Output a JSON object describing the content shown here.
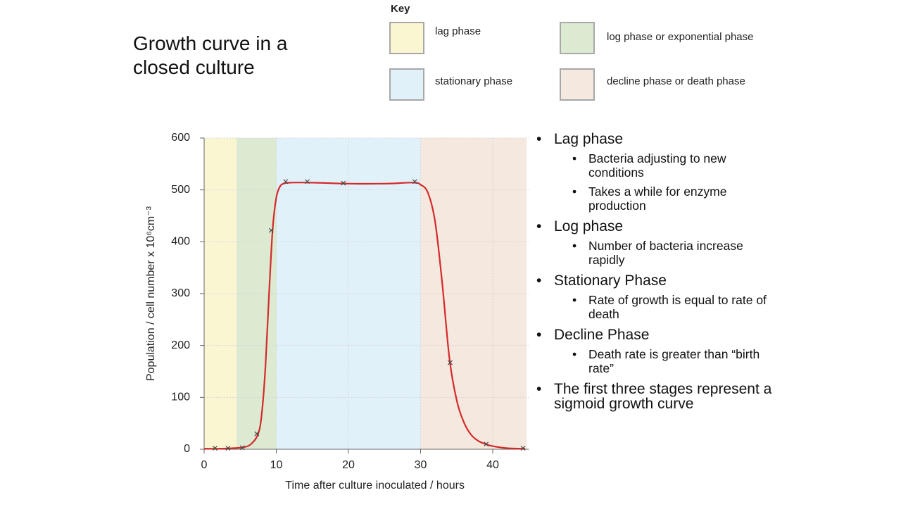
{
  "slide_title": "Growth curve in a closed culture",
  "key_title": "Key",
  "chart_data": {
    "type": "scatter",
    "xlabel": "Time after culture inoculated / hours",
    "ylabel": "Population / cell number x 10⁶cm⁻³",
    "xlim": [
      0,
      45
    ],
    "ylim": [
      0,
      600
    ],
    "xticks": [
      0,
      10,
      20,
      30,
      40
    ],
    "yticks": [
      0,
      100,
      200,
      300,
      400,
      500,
      600
    ],
    "grid": true,
    "phases": [
      {
        "name": "lag phase",
        "color": "#fbf6d2",
        "start": 0,
        "end": 4.5
      },
      {
        "name": "log phase or exponential phase",
        "color": "#dcead2",
        "start": 4.5,
        "end": 10
      },
      {
        "name": "stationary phase",
        "color": "#e1f1fa",
        "start": 10,
        "end": 30
      },
      {
        "name": "decline phase or death phase",
        "color": "#f5e8de",
        "start": 30,
        "end": 44.7
      }
    ],
    "points": {
      "color": "#444444",
      "x": [
        1.5,
        3.3,
        5.3,
        7.3,
        9.3,
        11.3,
        14.3,
        19.3,
        29.2,
        34.1,
        39.1,
        44.2
      ],
      "values": [
        2,
        2,
        3,
        30,
        422,
        516,
        516,
        513,
        516,
        167,
        10,
        2
      ]
    },
    "curve": {
      "color": "#d42a2a",
      "x": [
        0,
        2,
        4,
        5.5,
        6.5,
        7.5,
        8,
        8.5,
        9,
        9.5,
        10,
        10.5,
        11,
        12,
        15,
        20,
        25,
        29,
        30,
        31,
        32,
        33,
        34,
        35,
        36,
        37,
        38,
        39,
        40,
        42,
        44.5
      ],
      "values": [
        1,
        1,
        2,
        4,
        10,
        30,
        70,
        160,
        300,
        425,
        485,
        506,
        512,
        514,
        514,
        512,
        512,
        514,
        510,
        495,
        440,
        320,
        175,
        95,
        52,
        28,
        16,
        10,
        6,
        2,
        1
      ]
    }
  },
  "bullets": [
    {
      "text": "Lag phase",
      "sub": [
        "Bacteria adjusting to new conditions",
        "Takes a while for enzyme production"
      ]
    },
    {
      "text": "Log phase",
      "sub": [
        "Number of bacteria increase rapidly"
      ]
    },
    {
      "text": "Stationary Phase",
      "sub": [
        "Rate of growth is equal to rate of death"
      ]
    },
    {
      "text": "Decline Phase",
      "sub": [
        "Death rate is greater than “birth rate”"
      ]
    },
    {
      "text": "The first three stages represent a sigmoid growth curve",
      "sub": []
    }
  ]
}
